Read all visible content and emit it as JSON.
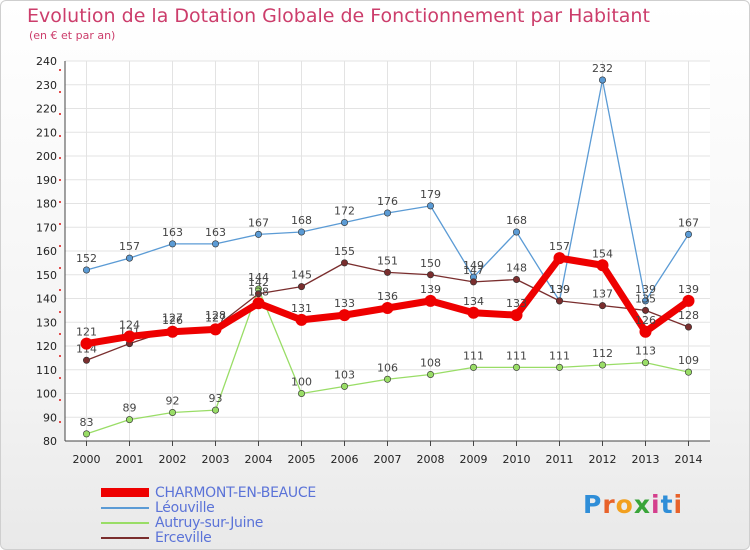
{
  "title": "Evolution de la Dotation Globale de Fonctionnement par Habitant",
  "subtitle": "(en € et par an)",
  "logo": {
    "letters": [
      "P",
      "r",
      "o",
      "x",
      "i",
      "t",
      "i"
    ],
    "colors": [
      "#2f8ed8",
      "#e8622a",
      "#f2a01f",
      "#3aa53a",
      "#d43f8d",
      "#2f8ed8",
      "#e8622a"
    ]
  },
  "chart_data": {
    "type": "line",
    "x": [
      "2000",
      "2001",
      "2002",
      "2003",
      "2004",
      "2005",
      "2006",
      "2007",
      "2008",
      "2009",
      "2010",
      "2011",
      "2012",
      "2013",
      "2014"
    ],
    "ylim": [
      80,
      240
    ],
    "yticks": [
      80,
      90,
      100,
      110,
      120,
      130,
      140,
      150,
      160,
      170,
      180,
      190,
      200,
      210,
      220,
      230,
      240
    ],
    "grid": true,
    "legend_position": "bottom-left",
    "series": [
      {
        "name": "CHARMONT-EN-BEAUCE",
        "color": "#ee0000",
        "width": 7,
        "values": [
          121,
          124,
          126,
          127,
          138,
          131,
          133,
          136,
          139,
          134,
          133,
          157,
          154,
          126,
          139
        ]
      },
      {
        "name": "Léouville",
        "color": "#5b9bd5",
        "width": 1.3,
        "values": [
          152,
          157,
          163,
          163,
          167,
          168,
          172,
          176,
          179,
          149,
          168,
          139,
          232,
          139,
          167
        ]
      },
      {
        "name": "Autruy-sur-Juine",
        "color": "#99dd66",
        "width": 1.3,
        "values": [
          83,
          89,
          92,
          93,
          144,
          100,
          103,
          106,
          108,
          111,
          111,
          111,
          112,
          113,
          109
        ]
      },
      {
        "name": "Erceville",
        "color": "#7a2e2e",
        "width": 1.3,
        "values": [
          114,
          121,
          127,
          128,
          142,
          145,
          155,
          151,
          150,
          147,
          148,
          139,
          137,
          135,
          128
        ]
      }
    ]
  }
}
